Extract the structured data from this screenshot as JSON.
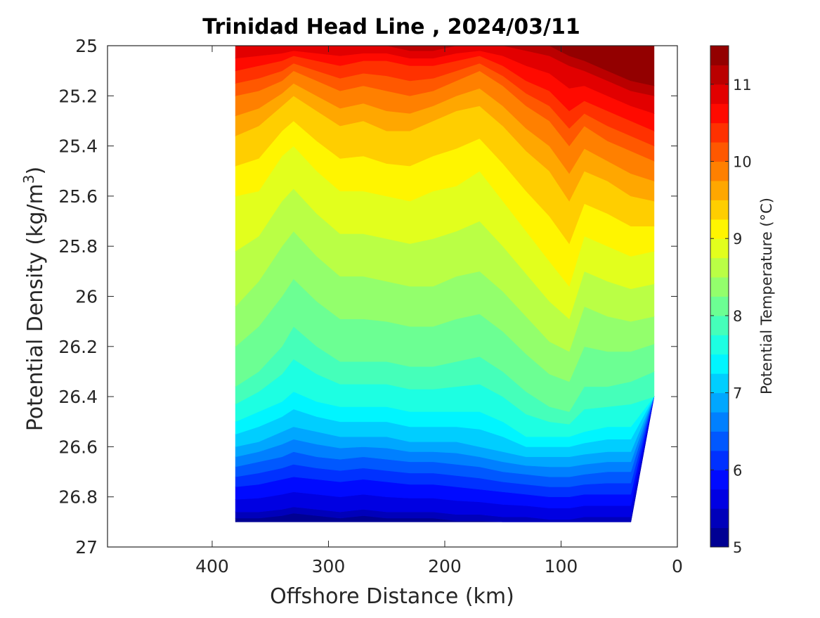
{
  "chart_data": {
    "type": "heatmap",
    "subtype": "filled-contour",
    "title": "Trinidad Head Line , 2024/03/11",
    "xlabel": "Offshore Distance (km)",
    "ylabel_main": "Potential Density (kg/m",
    "ylabel_sup": "3",
    "ylabel_tail": ")",
    "colorbar_label": "Potential Temperature (°C)",
    "colormap": "jet",
    "xlim": [
      490,
      0
    ],
    "x_reversed": true,
    "ylim": [
      25,
      27
    ],
    "y_reversed": true,
    "grid": false,
    "xticks": [
      400,
      300,
      200,
      100,
      0
    ],
    "xtick_labels": [
      "400",
      "300",
      "200",
      "100",
      "0"
    ],
    "yticks": [
      25,
      25.2,
      25.4,
      25.6,
      25.8,
      26,
      26.2,
      26.4,
      26.6,
      26.8,
      27
    ],
    "ytick_labels": [
      "25",
      "25.2",
      "25.4",
      "25.6",
      "25.8",
      "26",
      "26.2",
      "26.4",
      "26.6",
      "26.8",
      "27"
    ],
    "colorbar_range": [
      5,
      11.5
    ],
    "colorbar_ticks": [
      5,
      6,
      7,
      8,
      9,
      10,
      11
    ],
    "colorbar_tick_labels": [
      "5",
      "6",
      "7",
      "8",
      "9",
      "10",
      "11"
    ],
    "contour_levels": [
      5,
      5.25,
      5.5,
      5.75,
      6,
      6.25,
      6.5,
      6.75,
      7,
      7.25,
      7.5,
      7.75,
      8,
      8.25,
      8.5,
      8.75,
      9,
      9.25,
      9.5,
      9.75,
      10,
      10.25,
      10.5,
      10.75,
      11,
      11.25,
      11.5
    ],
    "x": [
      380,
      360,
      340,
      330,
      310,
      290,
      270,
      250,
      230,
      210,
      190,
      170,
      150,
      130,
      110,
      93,
      80,
      60,
      40,
      20
    ],
    "data_bottom_density": [
      26.9,
      26.9,
      26.9,
      26.9,
      26.9,
      26.9,
      26.9,
      26.9,
      26.9,
      26.9,
      26.9,
      26.9,
      26.9,
      26.9,
      26.9,
      26.9,
      26.9,
      26.9,
      26.9,
      26.4
    ],
    "isotherms": [
      {
        "temp": 11.0,
        "density": [
          25.0,
          25.0,
          25.0,
          25.0,
          25.0,
          25.0,
          25.0,
          25.0,
          25.02,
          25.02,
          25.0,
          25.0,
          25.0,
          25.02,
          25.04,
          25.08,
          25.1,
          25.14,
          25.18,
          25.2
        ]
      },
      {
        "temp": 10.5,
        "density": [
          25.1,
          25.08,
          25.06,
          25.04,
          25.06,
          25.08,
          25.06,
          25.06,
          25.08,
          25.08,
          25.06,
          25.04,
          25.08,
          25.14,
          25.18,
          25.26,
          25.22,
          25.26,
          25.3,
          25.34
        ]
      },
      {
        "temp": 10.0,
        "density": [
          25.2,
          25.18,
          25.14,
          25.1,
          25.14,
          25.18,
          25.16,
          25.18,
          25.2,
          25.18,
          25.14,
          25.1,
          25.16,
          25.24,
          25.3,
          25.4,
          25.32,
          25.38,
          25.42,
          25.46
        ]
      },
      {
        "temp": 9.5,
        "density": [
          25.36,
          25.32,
          25.24,
          25.2,
          25.26,
          25.32,
          25.3,
          25.34,
          25.34,
          25.3,
          25.26,
          25.24,
          25.32,
          25.42,
          25.5,
          25.62,
          25.5,
          25.54,
          25.6,
          25.62
        ]
      },
      {
        "temp": 9.0,
        "density": [
          25.6,
          25.58,
          25.44,
          25.4,
          25.5,
          25.58,
          25.58,
          25.6,
          25.62,
          25.58,
          25.56,
          25.5,
          25.62,
          25.74,
          25.86,
          25.96,
          25.76,
          25.8,
          25.84,
          25.82
        ]
      },
      {
        "temp": 8.5,
        "density": [
          26.04,
          25.94,
          25.8,
          25.74,
          25.84,
          25.92,
          25.92,
          25.94,
          25.96,
          25.96,
          25.92,
          25.9,
          25.98,
          26.08,
          26.18,
          26.22,
          26.04,
          26.08,
          26.1,
          26.08
        ]
      },
      {
        "temp": 8.0,
        "density": [
          26.36,
          26.3,
          26.2,
          26.12,
          26.2,
          26.26,
          26.26,
          26.26,
          26.28,
          26.28,
          26.26,
          26.24,
          26.3,
          26.38,
          26.44,
          26.46,
          26.36,
          26.36,
          26.34,
          26.3
        ]
      },
      {
        "temp": 7.5,
        "density": [
          26.5,
          26.46,
          26.42,
          26.38,
          26.42,
          26.44,
          26.44,
          26.44,
          26.46,
          26.46,
          26.46,
          26.46,
          26.5,
          26.56,
          26.56,
          26.56,
          26.54,
          26.52,
          26.52,
          26.5
        ]
      },
      {
        "temp": 7.0,
        "density": [
          26.6,
          26.58,
          26.54,
          26.52,
          26.54,
          26.56,
          26.56,
          26.56,
          26.58,
          26.58,
          26.58,
          26.6,
          26.62,
          26.64,
          26.64,
          26.64,
          26.63,
          26.62,
          26.62,
          26.6
        ]
      },
      {
        "temp": 6.5,
        "density": [
          26.68,
          26.66,
          26.64,
          26.62,
          26.64,
          26.65,
          26.64,
          26.65,
          26.66,
          26.66,
          26.67,
          26.68,
          26.7,
          26.71,
          26.72,
          26.72,
          26.71,
          26.7,
          26.7,
          26.7
        ]
      },
      {
        "temp": 6.0,
        "density": [
          26.76,
          26.75,
          26.73,
          26.72,
          26.73,
          26.74,
          26.73,
          26.74,
          26.75,
          26.75,
          26.76,
          26.77,
          26.78,
          26.79,
          26.8,
          26.8,
          26.79,
          26.79,
          26.79,
          26.79
        ]
      },
      {
        "temp": 5.5,
        "density": [
          26.86,
          26.86,
          26.85,
          26.84,
          26.85,
          26.86,
          26.85,
          26.86,
          26.86,
          26.86,
          26.87,
          26.87,
          26.88,
          26.88,
          26.89,
          26.89,
          26.88,
          26.88,
          26.88,
          26.88
        ]
      }
    ]
  }
}
